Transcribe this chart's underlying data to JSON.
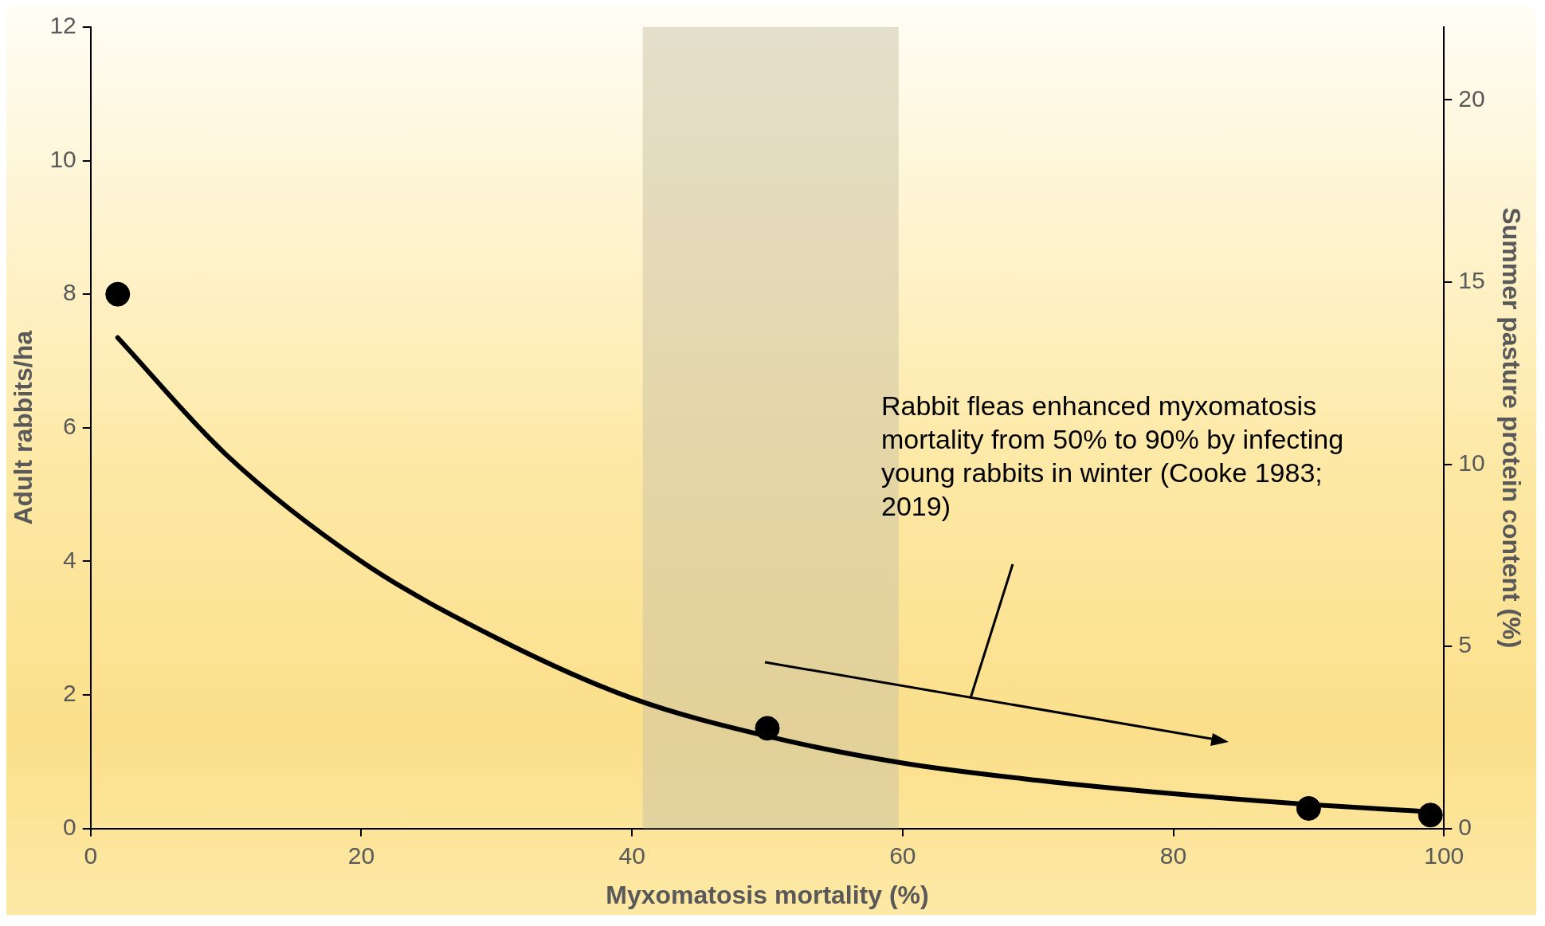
{
  "chart_data": {
    "type": "scatter",
    "xlabel": "Myxomatosis mortality (%)",
    "ylabel": "Adult rabbits/ha",
    "y2label": "Summer pasture protein content (%)",
    "xlim": [
      0,
      100
    ],
    "xticks": [
      0,
      20,
      40,
      60,
      80,
      100
    ],
    "ylim": [
      0,
      12
    ],
    "yticks": [
      0,
      2,
      4,
      6,
      8,
      10,
      12
    ],
    "y2lim": [
      0,
      22
    ],
    "y2ticks": [
      0,
      5,
      10,
      15,
      20
    ],
    "grid": false,
    "legend": false,
    "marker": "circle",
    "series": [
      {
        "type": "scatter",
        "color": "#000000",
        "x": [
          2,
          50,
          90,
          99
        ],
        "values": [
          8,
          1.5,
          0.3,
          0.2
        ]
      },
      {
        "type": "line",
        "color": "#000000",
        "marker": "none",
        "x": [
          2,
          10,
          20,
          30,
          40,
          50,
          60,
          70,
          80,
          90,
          99
        ],
        "values": [
          7.35,
          5.6,
          4.0,
          2.85,
          1.95,
          1.38,
          0.98,
          0.72,
          0.52,
          0.36,
          0.25
        ]
      }
    ],
    "bands": [
      {
        "axis": "x",
        "from": 40.8,
        "to": 59.7,
        "color": "#c9c2a6"
      }
    ],
    "annotations": [
      "Rabbit fleas enhanced myxomatosis mortality from 50% to 90% by infecting young rabbits in winter (Cooke 1983; 2019)"
    ]
  }
}
